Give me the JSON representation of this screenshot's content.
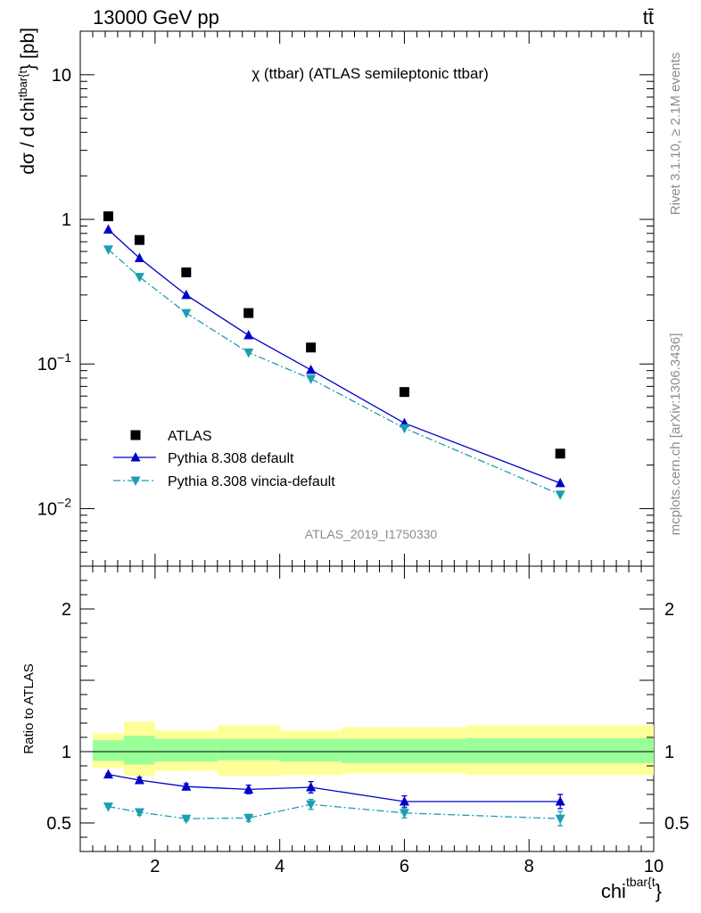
{
  "header": {
    "left": "13000 GeV pp",
    "right": "tt̄"
  },
  "side": {
    "rivet": "Rivet 3.1.10, ≥ 2.1M events",
    "mcplots": "mcplots.cern.ch [arXiv:1306.3436]"
  },
  "chart_data": {
    "type": "line",
    "title": "χ (ttbar) (ATLAS semileptonic ttbar)",
    "analysis_label": "ATLAS_2019_I1750330",
    "xlabel": "chi^{tbar{t}}",
    "xlabel_parts": {
      "base": "chi",
      "sup": "tbar{t",
      "trail": "}"
    },
    "ylabel": "dσ / d chi^{tbar{t}} [pb]",
    "ylabel_parts": {
      "pre": "dσ / d chi",
      "sup": "tbar{t",
      "post": "} [pb]"
    },
    "ratio_ylabel": "Ratio to ATLAS",
    "x_scale": "linear",
    "xlim": [
      0.8,
      10.0
    ],
    "y_scale": "log",
    "ylim": [
      0.004,
      20
    ],
    "ratio_ylim": [
      0.3,
      2.3
    ],
    "x_ticklabels": [
      "2",
      "4",
      "6",
      "8",
      "10"
    ],
    "x_tick_values": [
      2,
      4,
      6,
      8,
      10
    ],
    "y_ticks": [
      {
        "value": 10,
        "base": "10",
        "exp": ""
      },
      {
        "value": 1,
        "base": "1",
        "exp": ""
      },
      {
        "value": 0.1,
        "base": "10",
        "exp": "−1"
      },
      {
        "value": 0.01,
        "base": "10",
        "exp": "−2"
      }
    ],
    "ratio_ticks": [
      {
        "value": 2,
        "label": "2"
      },
      {
        "value": 1,
        "label": "1"
      },
      {
        "value": 0.5,
        "label": "0.5"
      }
    ],
    "legend_position": "lower-left",
    "bins": [
      {
        "lo": 1.0,
        "hi": 1.5
      },
      {
        "lo": 1.5,
        "hi": 2.0
      },
      {
        "lo": 2.0,
        "hi": 3.0
      },
      {
        "lo": 3.0,
        "hi": 4.0
      },
      {
        "lo": 4.0,
        "hi": 5.0
      },
      {
        "lo": 5.0,
        "hi": 7.0
      },
      {
        "lo": 7.0,
        "hi": 10.0
      }
    ],
    "band_inner": [
      [
        0.935,
        1.08
      ],
      [
        0.91,
        1.11
      ],
      [
        0.93,
        1.09
      ],
      [
        0.94,
        1.09
      ],
      [
        0.93,
        1.09
      ],
      [
        0.92,
        1.09
      ],
      [
        0.92,
        1.095
      ]
    ],
    "band_outer": [
      [
        0.885,
        1.13
      ],
      [
        0.83,
        1.21
      ],
      [
        0.865,
        1.15
      ],
      [
        0.83,
        1.185
      ],
      [
        0.835,
        1.15
      ],
      [
        0.845,
        1.17
      ],
      [
        0.835,
        1.185
      ]
    ],
    "series": [
      {
        "name": "ATLAS",
        "style": "data",
        "color": "#000000",
        "x": [
          1.25,
          1.75,
          2.5,
          3.5,
          4.5,
          6.0,
          8.5
        ],
        "values": [
          1.05,
          0.72,
          0.43,
          0.225,
          0.13,
          0.064,
          0.024
        ]
      },
      {
        "name": "Pythia 8.308 default",
        "style": "solid",
        "marker": "triangle-up",
        "color": "#0000cc",
        "x": [
          1.25,
          1.75,
          2.5,
          3.5,
          4.5,
          6.0,
          8.5
        ],
        "values": [
          0.85,
          0.54,
          0.3,
          0.158,
          0.091,
          0.039,
          0.015
        ],
        "ratio": [
          0.84,
          0.8,
          0.755,
          0.735,
          0.75,
          0.65,
          0.65
        ],
        "ratio_err": [
          0.006,
          0.02,
          0.02,
          0.03,
          0.04,
          0.04,
          0.05
        ]
      },
      {
        "name": "Pythia 8.308 vincia-default",
        "style": "dashdot",
        "marker": "triangle-down",
        "color": "#1a9eb3",
        "x": [
          1.25,
          1.75,
          2.5,
          3.5,
          4.5,
          6.0,
          8.5
        ],
        "values": [
          0.62,
          0.4,
          0.225,
          0.12,
          0.079,
          0.036,
          0.0125
        ],
        "ratio": [
          0.615,
          0.575,
          0.53,
          0.535,
          0.63,
          0.57,
          0.53
        ],
        "ratio_err": [
          0.006,
          0.02,
          0.015,
          0.025,
          0.035,
          0.035,
          0.05
        ]
      }
    ]
  }
}
